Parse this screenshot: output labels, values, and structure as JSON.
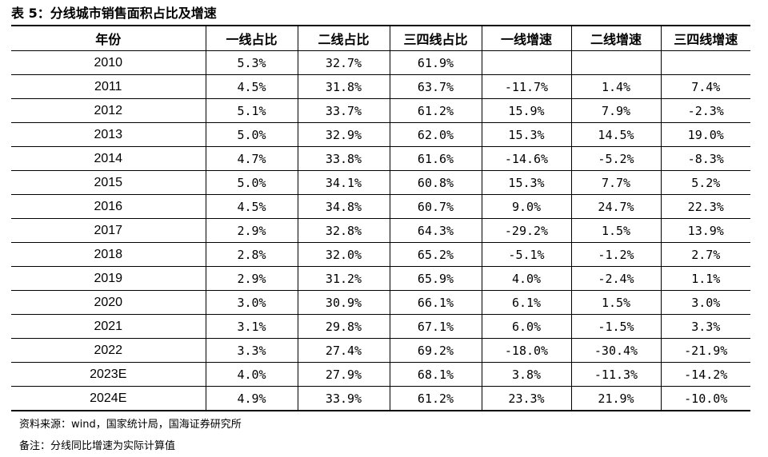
{
  "title": "表 5：分线城市销售面积占比及增速",
  "table": {
    "headers": [
      "年份",
      "一线占比",
      "二线占比",
      "三四线占比",
      "一线增速",
      "二线增速",
      "三四线增速"
    ],
    "rows": [
      [
        "2010",
        "5.3%",
        "32.7%",
        "61.9%",
        "",
        "",
        ""
      ],
      [
        "2011",
        "4.5%",
        "31.8%",
        "63.7%",
        "-11.7%",
        "1.4%",
        "7.4%"
      ],
      [
        "2012",
        "5.1%",
        "33.7%",
        "61.2%",
        "15.9%",
        "7.9%",
        "-2.3%"
      ],
      [
        "2013",
        "5.0%",
        "32.9%",
        "62.0%",
        "15.3%",
        "14.5%",
        "19.0%"
      ],
      [
        "2014",
        "4.7%",
        "33.8%",
        "61.6%",
        "-14.6%",
        "-5.2%",
        "-8.3%"
      ],
      [
        "2015",
        "5.0%",
        "34.1%",
        "60.8%",
        "15.3%",
        "7.7%",
        "5.2%"
      ],
      [
        "2016",
        "4.5%",
        "34.8%",
        "60.7%",
        "9.0%",
        "24.7%",
        "22.3%"
      ],
      [
        "2017",
        "2.9%",
        "32.8%",
        "64.3%",
        "-29.2%",
        "1.5%",
        "13.9%"
      ],
      [
        "2018",
        "2.8%",
        "32.0%",
        "65.2%",
        "-5.1%",
        "-1.2%",
        "2.7%"
      ],
      [
        "2019",
        "2.9%",
        "31.2%",
        "65.9%",
        "4.0%",
        "-2.4%",
        "1.1%"
      ],
      [
        "2020",
        "3.0%",
        "30.9%",
        "66.1%",
        "6.1%",
        "1.5%",
        "3.0%"
      ],
      [
        "2021",
        "3.1%",
        "29.8%",
        "67.1%",
        "6.0%",
        "-1.5%",
        "3.3%"
      ],
      [
        "2022",
        "3.3%",
        "27.4%",
        "69.2%",
        "-18.0%",
        "-30.4%",
        "-21.9%"
      ],
      [
        "2023E",
        "4.0%",
        "27.9%",
        "68.1%",
        "3.8%",
        "-11.3%",
        "-14.2%"
      ],
      [
        "2024E",
        "4.9%",
        "33.9%",
        "61.2%",
        "23.3%",
        "21.9%",
        "-10.0%"
      ]
    ]
  },
  "source": "资料来源：wind，国家统计局，国海证券研究所",
  "remark": "备注：分线同比增速为实际计算值"
}
